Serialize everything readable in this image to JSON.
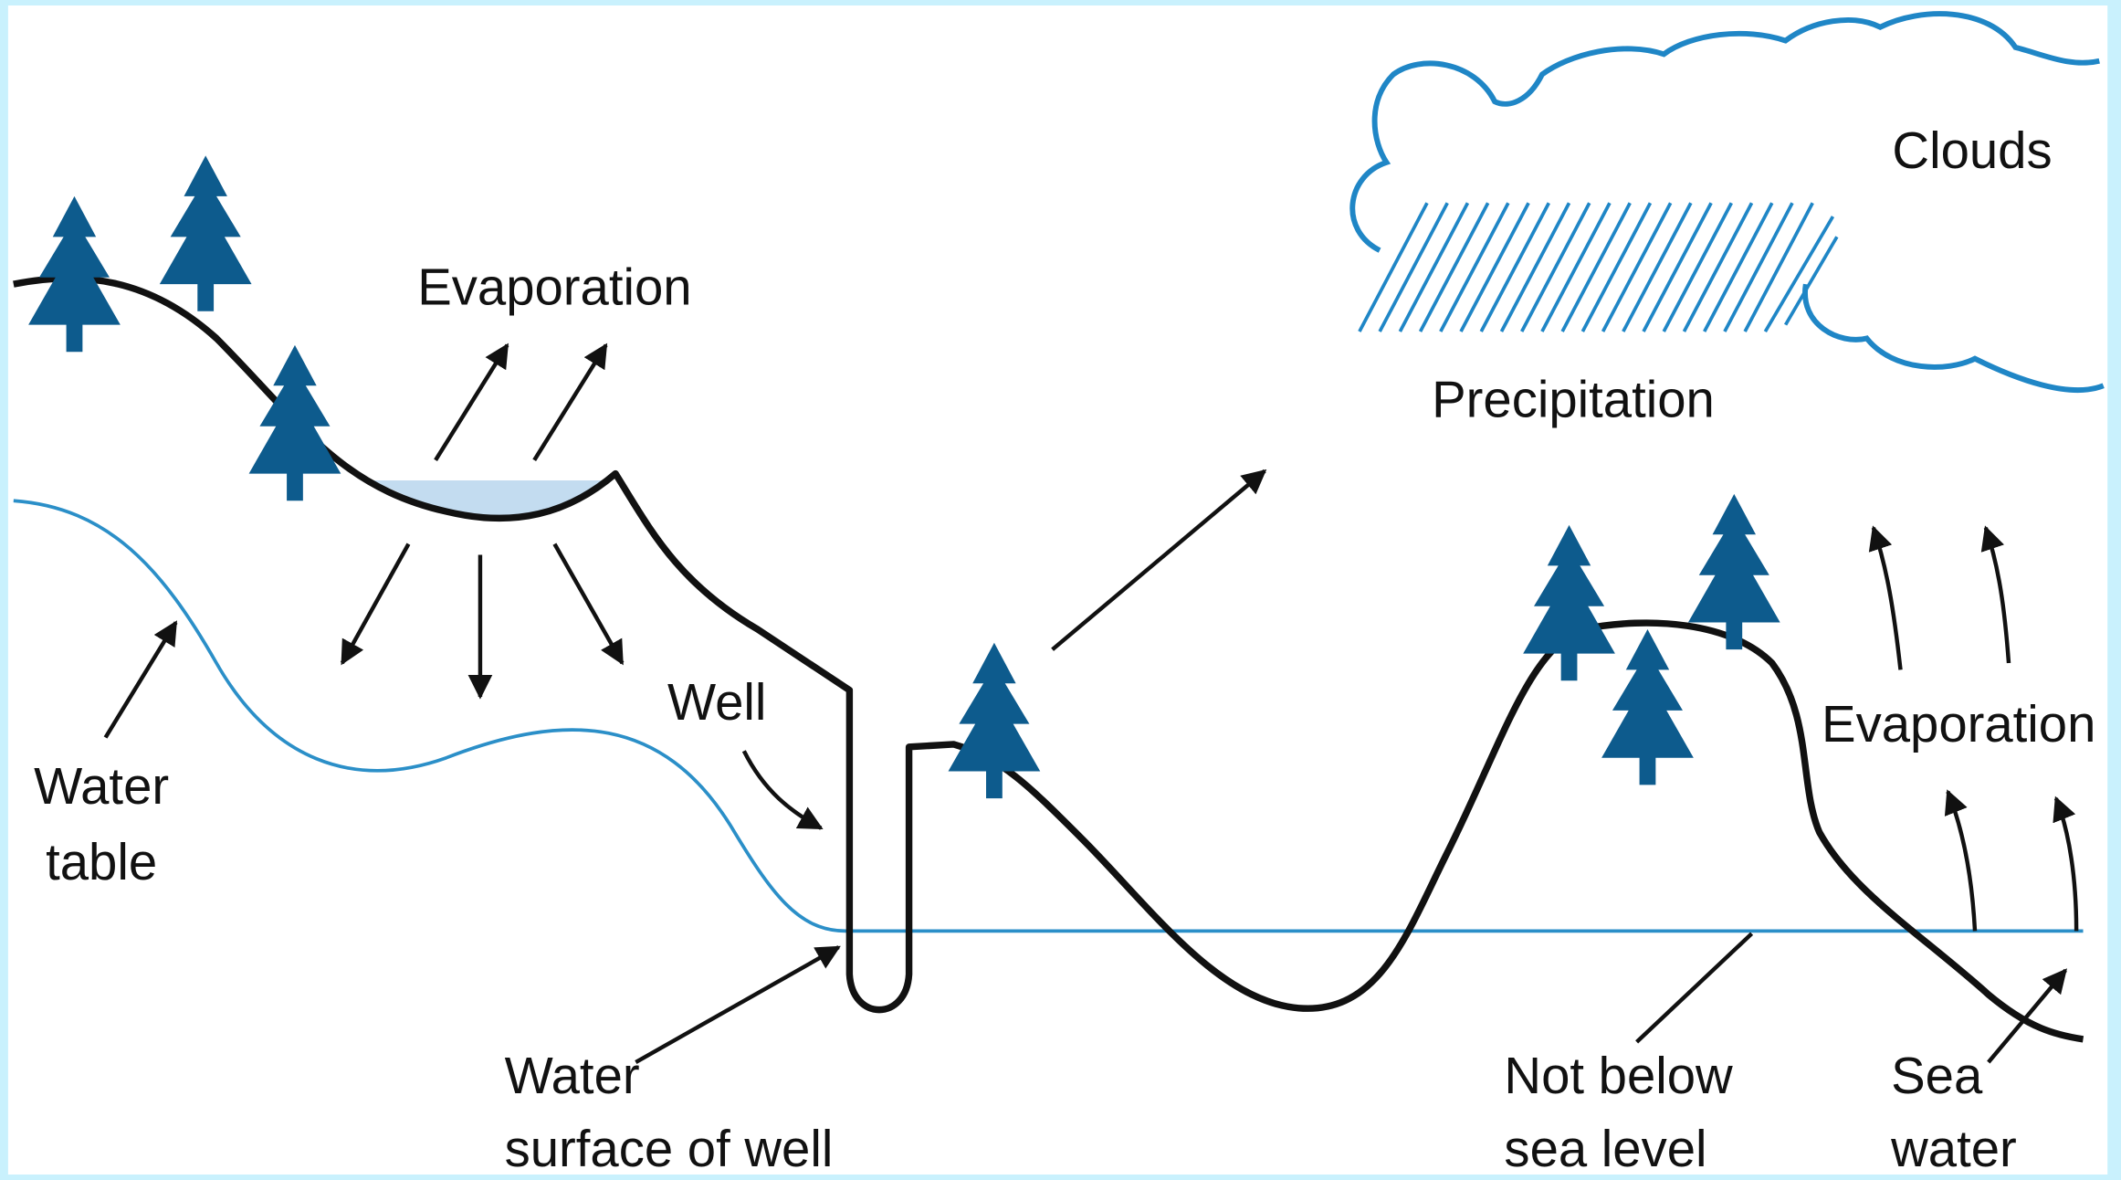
{
  "labels": {
    "evaporation_left": {
      "lines": [
        "Evaporation"
      ]
    },
    "clouds": {
      "lines": [
        "Clouds"
      ]
    },
    "precipitation": {
      "lines": [
        "Precipitation"
      ]
    },
    "well": {
      "lines": [
        "Well"
      ]
    },
    "evaporation_right": {
      "lines": [
        "Evaporation"
      ]
    },
    "water_table": {
      "lines": [
        "Water",
        "table"
      ]
    },
    "water_surface": {
      "lines": [
        "Water",
        "surface of well"
      ]
    },
    "sea_level": {
      "lines": [
        "Not below",
        "sea level"
      ]
    },
    "sea_water": {
      "lines": [
        "Sea",
        "water"
      ]
    }
  }
}
